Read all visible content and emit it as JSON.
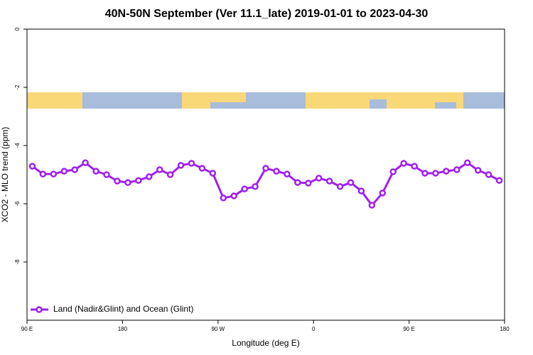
{
  "chart_data": {
    "type": "line",
    "title": "40N-50N September (Ver 11.1_late)   2019-01-01 to 2023-04-30",
    "x_label": "Longitude (deg E)",
    "y_label": "XCO2 - MLO trend (ppm)",
    "xlim": [
      90,
      540
    ],
    "ylim": [
      -10,
      0
    ],
    "xticks": [
      {
        "value": 90,
        "label": "90 E"
      },
      180,
      {
        "value": 270,
        "label": "90 W"
      },
      {
        "value": 360,
        "label": "0"
      },
      {
        "value": 450,
        "label": "90 E"
      },
      {
        "value": 540,
        "label": "180"
      }
    ],
    "yticks": [
      0,
      -2,
      -4,
      -6,
      -8
    ],
    "legend": "bottom-left",
    "x": [
      95,
      105,
      115,
      125,
      135,
      145,
      155,
      165,
      175,
      185,
      195,
      205,
      215,
      225,
      235,
      245,
      255,
      265,
      275,
      285,
      295,
      305,
      315,
      325,
      335,
      345,
      355,
      365,
      375,
      385,
      395,
      405,
      415,
      425,
      435,
      445,
      455,
      465,
      475,
      485,
      495,
      505,
      515,
      525,
      535
    ],
    "series": [
      {
        "name": "Land (Nadir&Glint) and Ocean (Glint)",
        "color": "#a020f0",
        "values": [
          -4.71,
          -4.98,
          -4.98,
          -4.88,
          -4.83,
          -4.59,
          -4.88,
          -5.0,
          -5.22,
          -5.27,
          -5.2,
          -5.07,
          -4.83,
          -5.0,
          -4.68,
          -4.61,
          -4.78,
          -4.95,
          -5.8,
          -5.73,
          -5.49,
          -5.41,
          -4.78,
          -4.88,
          -4.98,
          -5.27,
          -5.29,
          -5.12,
          -5.22,
          -5.41,
          -5.27,
          -5.56,
          -6.05,
          -5.63,
          -4.9,
          -4.61,
          -4.71,
          -4.95,
          -4.95,
          -4.88,
          -4.83,
          -4.59,
          -4.85,
          -5.0,
          -5.2
        ]
      }
    ]
  }
}
